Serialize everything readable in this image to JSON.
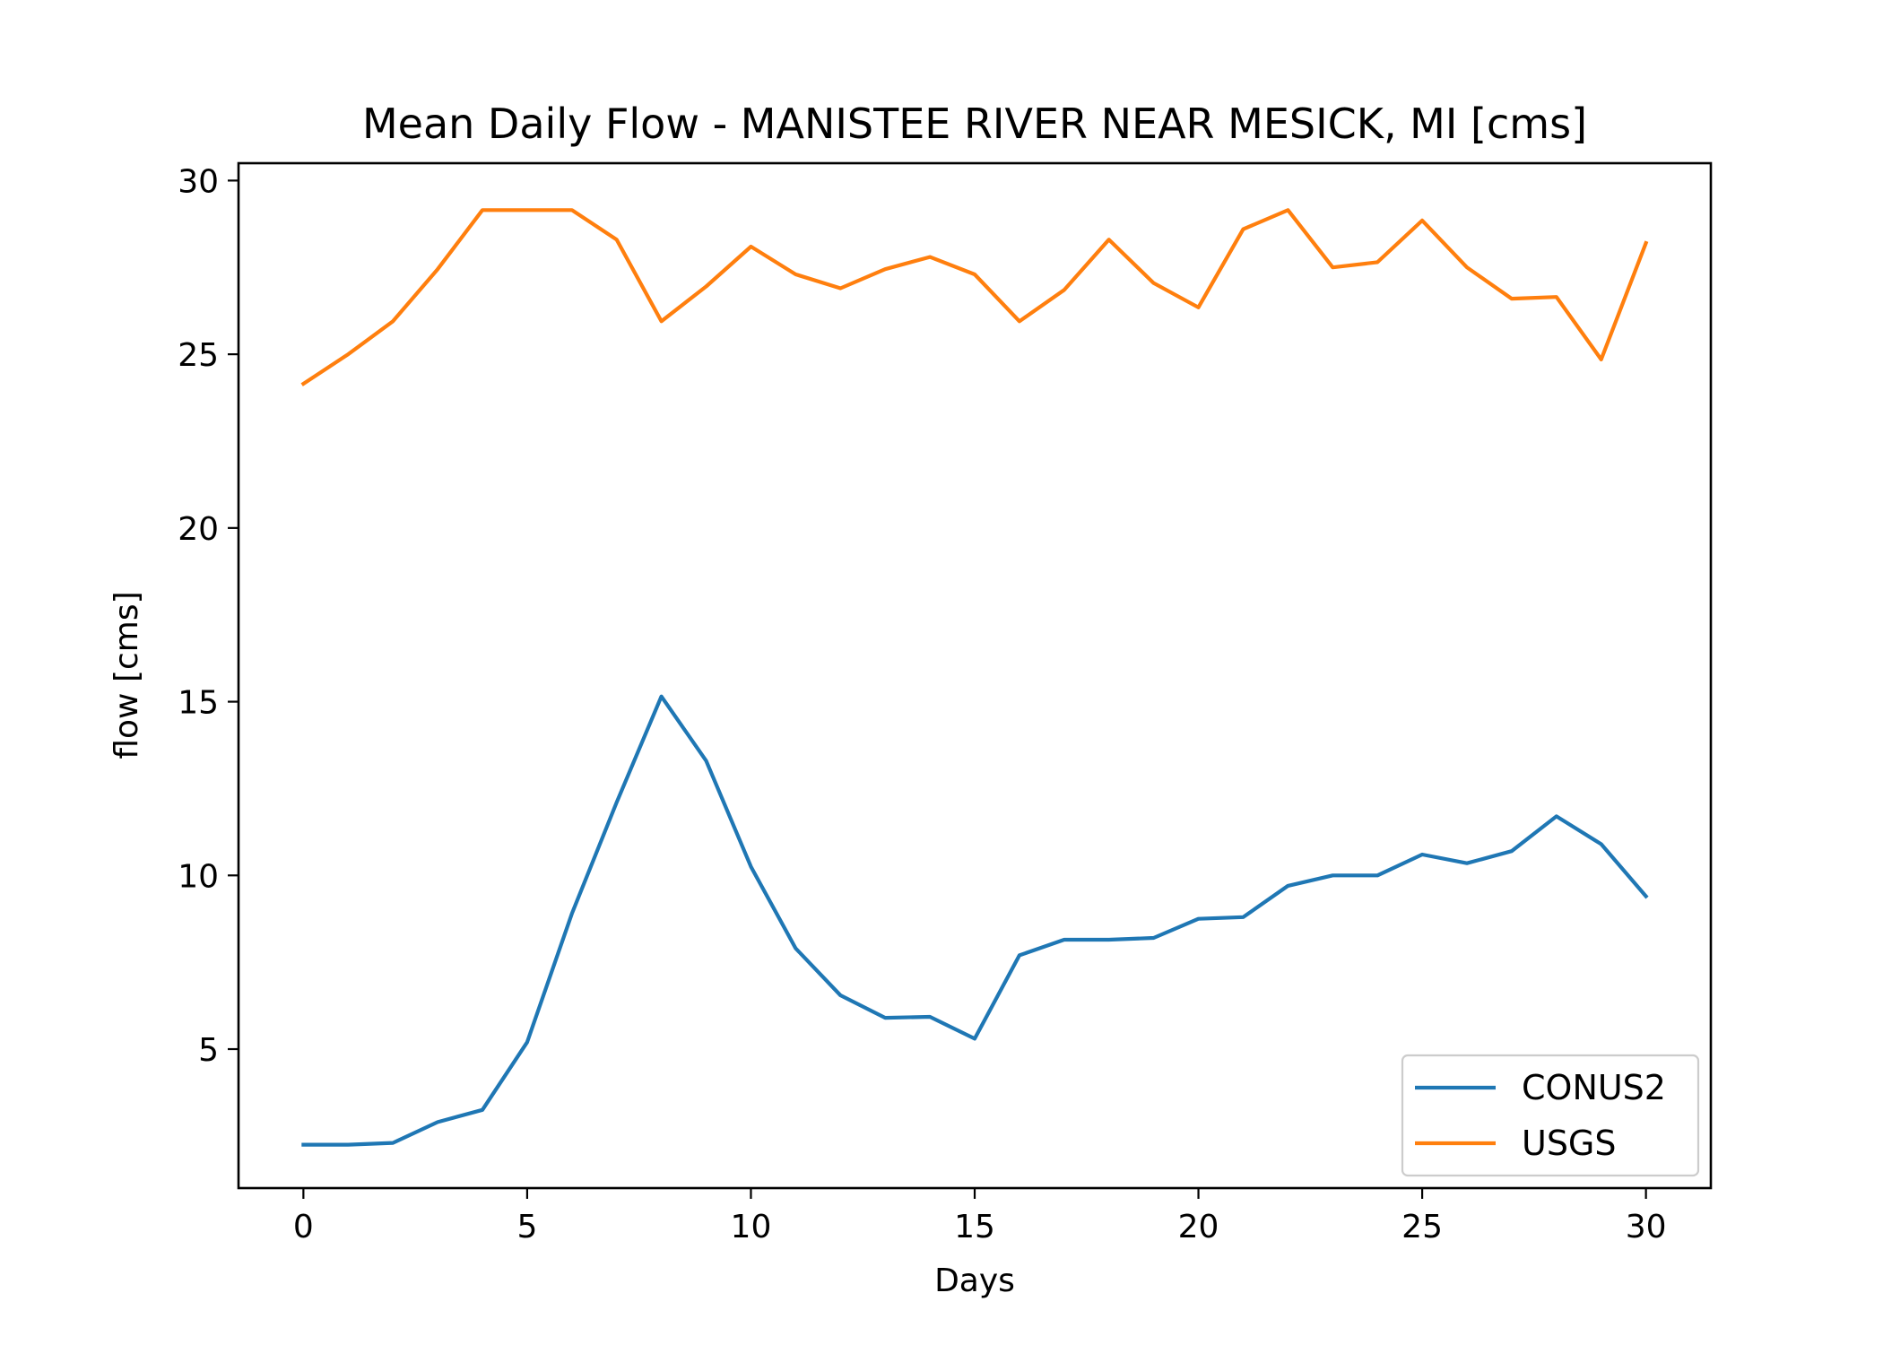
{
  "chart_data": {
    "type": "line",
    "title": "Mean Daily Flow - MANISTEE RIVER NEAR MESICK, MI [cms]",
    "xlabel": "Days",
    "ylabel": "flow [cms]",
    "xlim": [
      -1.45,
      31.45
    ],
    "ylim": [
      1.0,
      30.5
    ],
    "xticks": [
      0,
      5,
      10,
      15,
      20,
      25,
      30
    ],
    "yticks": [
      5,
      10,
      15,
      20,
      25,
      30
    ],
    "grid": false,
    "legend_position": "lower-right",
    "x": [
      0,
      1,
      2,
      3,
      4,
      5,
      6,
      7,
      8,
      9,
      10,
      11,
      12,
      13,
      14,
      15,
      16,
      17,
      18,
      19,
      20,
      21,
      22,
      23,
      24,
      25,
      26,
      27,
      28,
      29,
      30
    ],
    "series": [
      {
        "name": "CONUS2",
        "color": "#1f77b4",
        "values": [
          2.25,
          2.25,
          2.3,
          2.9,
          3.25,
          5.2,
          8.9,
          12.1,
          15.15,
          13.3,
          10.25,
          7.9,
          6.55,
          5.9,
          5.93,
          5.3,
          7.7,
          8.15,
          8.15,
          8.2,
          8.75,
          8.8,
          9.7,
          10.0,
          10.0,
          10.6,
          10.35,
          10.7,
          11.7,
          10.9,
          9.4
        ]
      },
      {
        "name": "USGS",
        "color": "#ff7f0e",
        "values": [
          24.15,
          25.0,
          25.95,
          27.45,
          29.15,
          29.15,
          29.15,
          28.3,
          25.95,
          26.95,
          28.1,
          27.3,
          26.9,
          27.45,
          27.8,
          27.3,
          25.95,
          26.85,
          28.3,
          27.05,
          26.35,
          28.6,
          29.15,
          27.5,
          27.65,
          28.85,
          27.5,
          26.6,
          26.65,
          24.85,
          28.2
        ]
      }
    ]
  }
}
